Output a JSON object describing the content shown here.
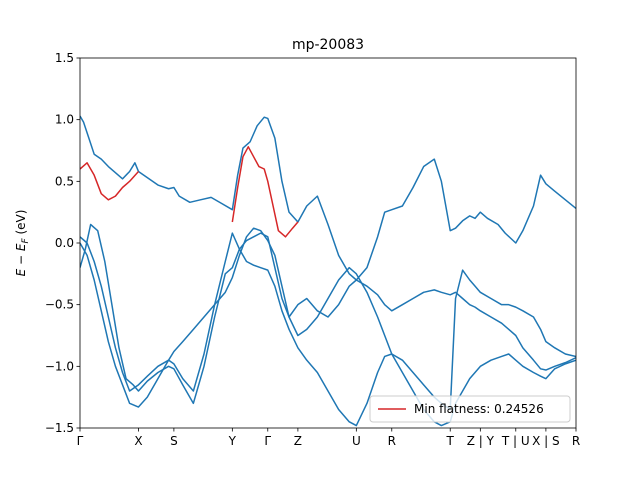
{
  "chart_data": {
    "type": "line",
    "title": "mp-20083",
    "ylabel": "E − E_F (eV)",
    "ylabel_main": "E − E",
    "ylabel_sub": "F",
    "ylabel_unit": " (eV)",
    "ylim": [
      -1.5,
      1.5
    ],
    "xlim": [
      0,
      14.0
    ],
    "yticks": [
      -1.5,
      -1.0,
      -0.5,
      0.0,
      0.5,
      1.0,
      1.5
    ],
    "ytick_labels": [
      "−1.5",
      "−1.0",
      "−0.5",
      "0.0",
      "0.5",
      "1.0",
      "1.5"
    ],
    "kpoints": [
      {
        "label": "Γ",
        "x": 0.0
      },
      {
        "label": "X",
        "x": 1.65
      },
      {
        "label": "S",
        "x": 2.65
      },
      {
        "label": "Y",
        "x": 4.3
      },
      {
        "label": "Γ",
        "x": 5.3
      },
      {
        "label": "Z",
        "x": 6.15
      },
      {
        "label": "U",
        "x": 7.8
      },
      {
        "label": "R",
        "x": 8.8
      },
      {
        "label": "T",
        "x": 10.45
      },
      {
        "label": "Z | Y",
        "x": 11.3
      },
      {
        "label": "T | U",
        "x": 12.3
      },
      {
        "label": "X | S",
        "x": 13.15
      },
      {
        "label": "R",
        "x": 14.0
      }
    ],
    "legend": {
      "label": "Min flatness: 0.24526",
      "placement": "lower right"
    },
    "colors": {
      "bands": "#1f77b4",
      "flat": "#d62728"
    },
    "bands": [
      {
        "x": [
          0.0,
          0.1,
          0.25,
          0.4,
          0.6,
          0.8,
          1.0,
          1.2,
          1.4,
          1.55,
          1.65,
          1.9,
          2.2,
          2.5,
          2.65,
          2.8,
          3.1,
          3.4,
          3.7,
          4.0,
          4.3,
          4.45,
          4.6,
          4.8,
          5.0,
          5.2,
          5.3,
          5.5,
          5.7,
          5.9,
          6.15,
          6.4,
          6.7,
          7.0,
          7.3,
          7.6,
          7.8,
          8.1,
          8.4,
          8.6,
          8.8,
          9.1,
          9.4,
          9.7,
          10.0,
          10.2,
          10.45,
          10.6,
          10.8,
          11.0,
          11.15,
          11.3,
          11.5,
          11.8,
          12.0,
          12.3,
          12.5,
          12.8,
          13.0,
          13.15,
          13.4,
          13.7,
          14.0
        ],
        "y": [
          1.03,
          0.98,
          0.85,
          0.72,
          0.68,
          0.62,
          0.57,
          0.52,
          0.58,
          0.65,
          0.58,
          0.53,
          0.47,
          0.44,
          0.45,
          0.38,
          0.33,
          0.35,
          0.37,
          0.32,
          0.27,
          0.55,
          0.77,
          0.82,
          0.95,
          1.02,
          1.01,
          0.85,
          0.5,
          0.25,
          0.17,
          0.3,
          0.38,
          0.15,
          -0.1,
          -0.25,
          -0.3,
          -0.2,
          0.05,
          0.25,
          0.27,
          0.3,
          0.45,
          0.62,
          0.68,
          0.5,
          0.1,
          0.12,
          0.18,
          0.22,
          0.2,
          0.25,
          0.2,
          0.15,
          0.08,
          0.0,
          0.1,
          0.3,
          0.55,
          0.48,
          0.42,
          0.35,
          0.28
        ]
      },
      {
        "x": [
          0.0,
          0.15,
          0.3,
          0.5,
          0.7,
          0.9,
          1.1,
          1.3,
          1.5,
          1.65,
          1.9,
          2.2,
          2.5,
          2.65,
          2.9,
          3.2,
          3.5,
          3.8,
          4.1,
          4.3,
          4.5,
          4.7,
          4.9,
          5.1,
          5.3,
          5.5,
          5.7,
          5.9,
          6.15,
          6.4,
          6.7,
          7.0,
          7.3,
          7.6,
          7.8,
          8.1,
          8.4,
          8.6,
          8.8,
          9.1,
          9.4,
          9.7,
          10.0,
          10.2,
          10.45,
          10.6,
          10.8,
          11.0,
          11.15,
          11.3,
          11.6,
          11.9,
          12.1,
          12.3,
          12.5,
          12.8,
          13.0,
          13.15,
          13.4,
          13.7,
          14.0
        ],
        "y": [
          -0.2,
          -0.05,
          0.15,
          0.1,
          -0.15,
          -0.5,
          -0.85,
          -1.1,
          -1.15,
          -1.2,
          -1.12,
          -1.05,
          -1.0,
          -1.02,
          -1.15,
          -1.3,
          -1.0,
          -0.6,
          -0.25,
          -0.2,
          -0.05,
          0.02,
          0.05,
          0.08,
          0.05,
          -0.2,
          -0.45,
          -0.6,
          -0.5,
          -0.45,
          -0.55,
          -0.6,
          -0.5,
          -0.35,
          -0.3,
          -0.35,
          -0.42,
          -0.5,
          -0.55,
          -0.5,
          -0.45,
          -0.4,
          -0.38,
          -0.4,
          -0.42,
          -0.4,
          -0.45,
          -0.5,
          -0.52,
          -0.55,
          -0.6,
          -0.65,
          -0.7,
          -0.75,
          -0.85,
          -0.95,
          -1.02,
          -1.03,
          -1.0,
          -0.97,
          -0.93
        ]
      },
      {
        "x": [
          0.0,
          0.2,
          0.4,
          0.6,
          0.8,
          1.0,
          1.2,
          1.4,
          1.65,
          1.9,
          2.2,
          2.5,
          2.65,
          2.9,
          3.2,
          3.5,
          3.8,
          4.1,
          4.3,
          4.5,
          4.7,
          4.9,
          5.1,
          5.3,
          5.5,
          5.7,
          5.9,
          6.15,
          6.4,
          6.7,
          7.0,
          7.3,
          7.6,
          7.8,
          8.1,
          8.4,
          8.6,
          8.8,
          9.1,
          9.4,
          9.7,
          10.0,
          10.2,
          10.45,
          10.6,
          10.8,
          11.0,
          11.15,
          11.3,
          11.6,
          11.9,
          12.1,
          12.3,
          12.5,
          12.8,
          13.0,
          13.15,
          13.4,
          13.7,
          14.0
        ],
        "y": [
          0.05,
          0.0,
          -0.15,
          -0.35,
          -0.6,
          -0.85,
          -1.05,
          -1.2,
          -1.15,
          -1.08,
          -1.0,
          -0.95,
          -0.98,
          -1.1,
          -1.2,
          -0.9,
          -0.5,
          -0.15,
          0.08,
          -0.05,
          -0.15,
          -0.18,
          -0.2,
          -0.22,
          -0.35,
          -0.55,
          -0.7,
          -0.85,
          -0.95,
          -1.05,
          -1.2,
          -1.35,
          -1.45,
          -1.48,
          -1.3,
          -1.05,
          -0.92,
          -0.9,
          -0.95,
          -1.05,
          -1.15,
          -1.25,
          -1.3,
          -1.35,
          -0.45,
          -0.22,
          -0.3,
          -0.35,
          -0.4,
          -0.45,
          -0.5,
          -0.5,
          -0.52,
          -0.55,
          -0.6,
          -0.7,
          -0.8,
          -0.85,
          -0.9,
          -0.92
        ]
      },
      {
        "x": [
          0.0,
          0.2,
          0.4,
          0.6,
          0.8,
          1.0,
          1.2,
          1.4,
          1.65,
          1.9,
          2.2,
          2.5,
          2.65,
          2.9,
          3.2,
          3.5,
          3.8,
          4.1,
          4.3,
          4.5,
          4.7,
          4.9,
          5.1,
          5.3,
          5.5,
          5.7,
          5.9,
          6.15,
          6.4,
          6.7,
          7.0,
          7.3,
          7.6,
          7.8,
          8.1,
          8.4,
          8.6,
          8.8,
          9.1,
          9.4,
          9.7,
          10.0,
          10.2,
          10.45,
          10.6,
          10.8,
          11.0,
          11.15,
          11.3,
          11.6,
          11.9,
          12.1,
          12.3,
          12.5,
          12.8,
          13.0,
          13.15,
          13.4,
          13.7,
          14.0
        ],
        "y": [
          0.0,
          -0.1,
          -0.3,
          -0.55,
          -0.8,
          -1.0,
          -1.15,
          -1.3,
          -1.33,
          -1.25,
          -1.1,
          -0.95,
          -0.88,
          -0.8,
          -0.7,
          -0.6,
          -0.5,
          -0.4,
          -0.28,
          -0.1,
          0.05,
          0.12,
          0.1,
          0.02,
          -0.1,
          -0.35,
          -0.6,
          -0.75,
          -0.7,
          -0.6,
          -0.45,
          -0.3,
          -0.2,
          -0.25,
          -0.4,
          -0.6,
          -0.75,
          -0.9,
          -1.05,
          -1.2,
          -1.35,
          -1.45,
          -1.48,
          -1.45,
          -1.3,
          -1.2,
          -1.1,
          -1.05,
          -1.0,
          -0.95,
          -0.92,
          -0.9,
          -0.95,
          -1.0,
          -1.05,
          -1.08,
          -1.1,
          -1.02,
          -0.98,
          -0.95
        ]
      }
    ],
    "flat_band": {
      "name": "Min flatness: 0.24526",
      "segments": [
        {
          "x": [
            0.0,
            0.2,
            0.4,
            0.6,
            0.8,
            1.0,
            1.2,
            1.4,
            1.65
          ],
          "y": [
            0.6,
            0.65,
            0.55,
            0.4,
            0.35,
            0.38,
            0.45,
            0.5,
            0.58
          ]
        },
        {
          "x": [
            4.3,
            4.45,
            4.6,
            4.75,
            4.9,
            5.05,
            5.2,
            5.3,
            5.45,
            5.6,
            5.8,
            6.0,
            6.15
          ],
          "y": [
            0.17,
            0.45,
            0.7,
            0.78,
            0.7,
            0.62,
            0.6,
            0.5,
            0.3,
            0.1,
            0.05,
            0.12,
            0.17
          ]
        }
      ]
    }
  }
}
